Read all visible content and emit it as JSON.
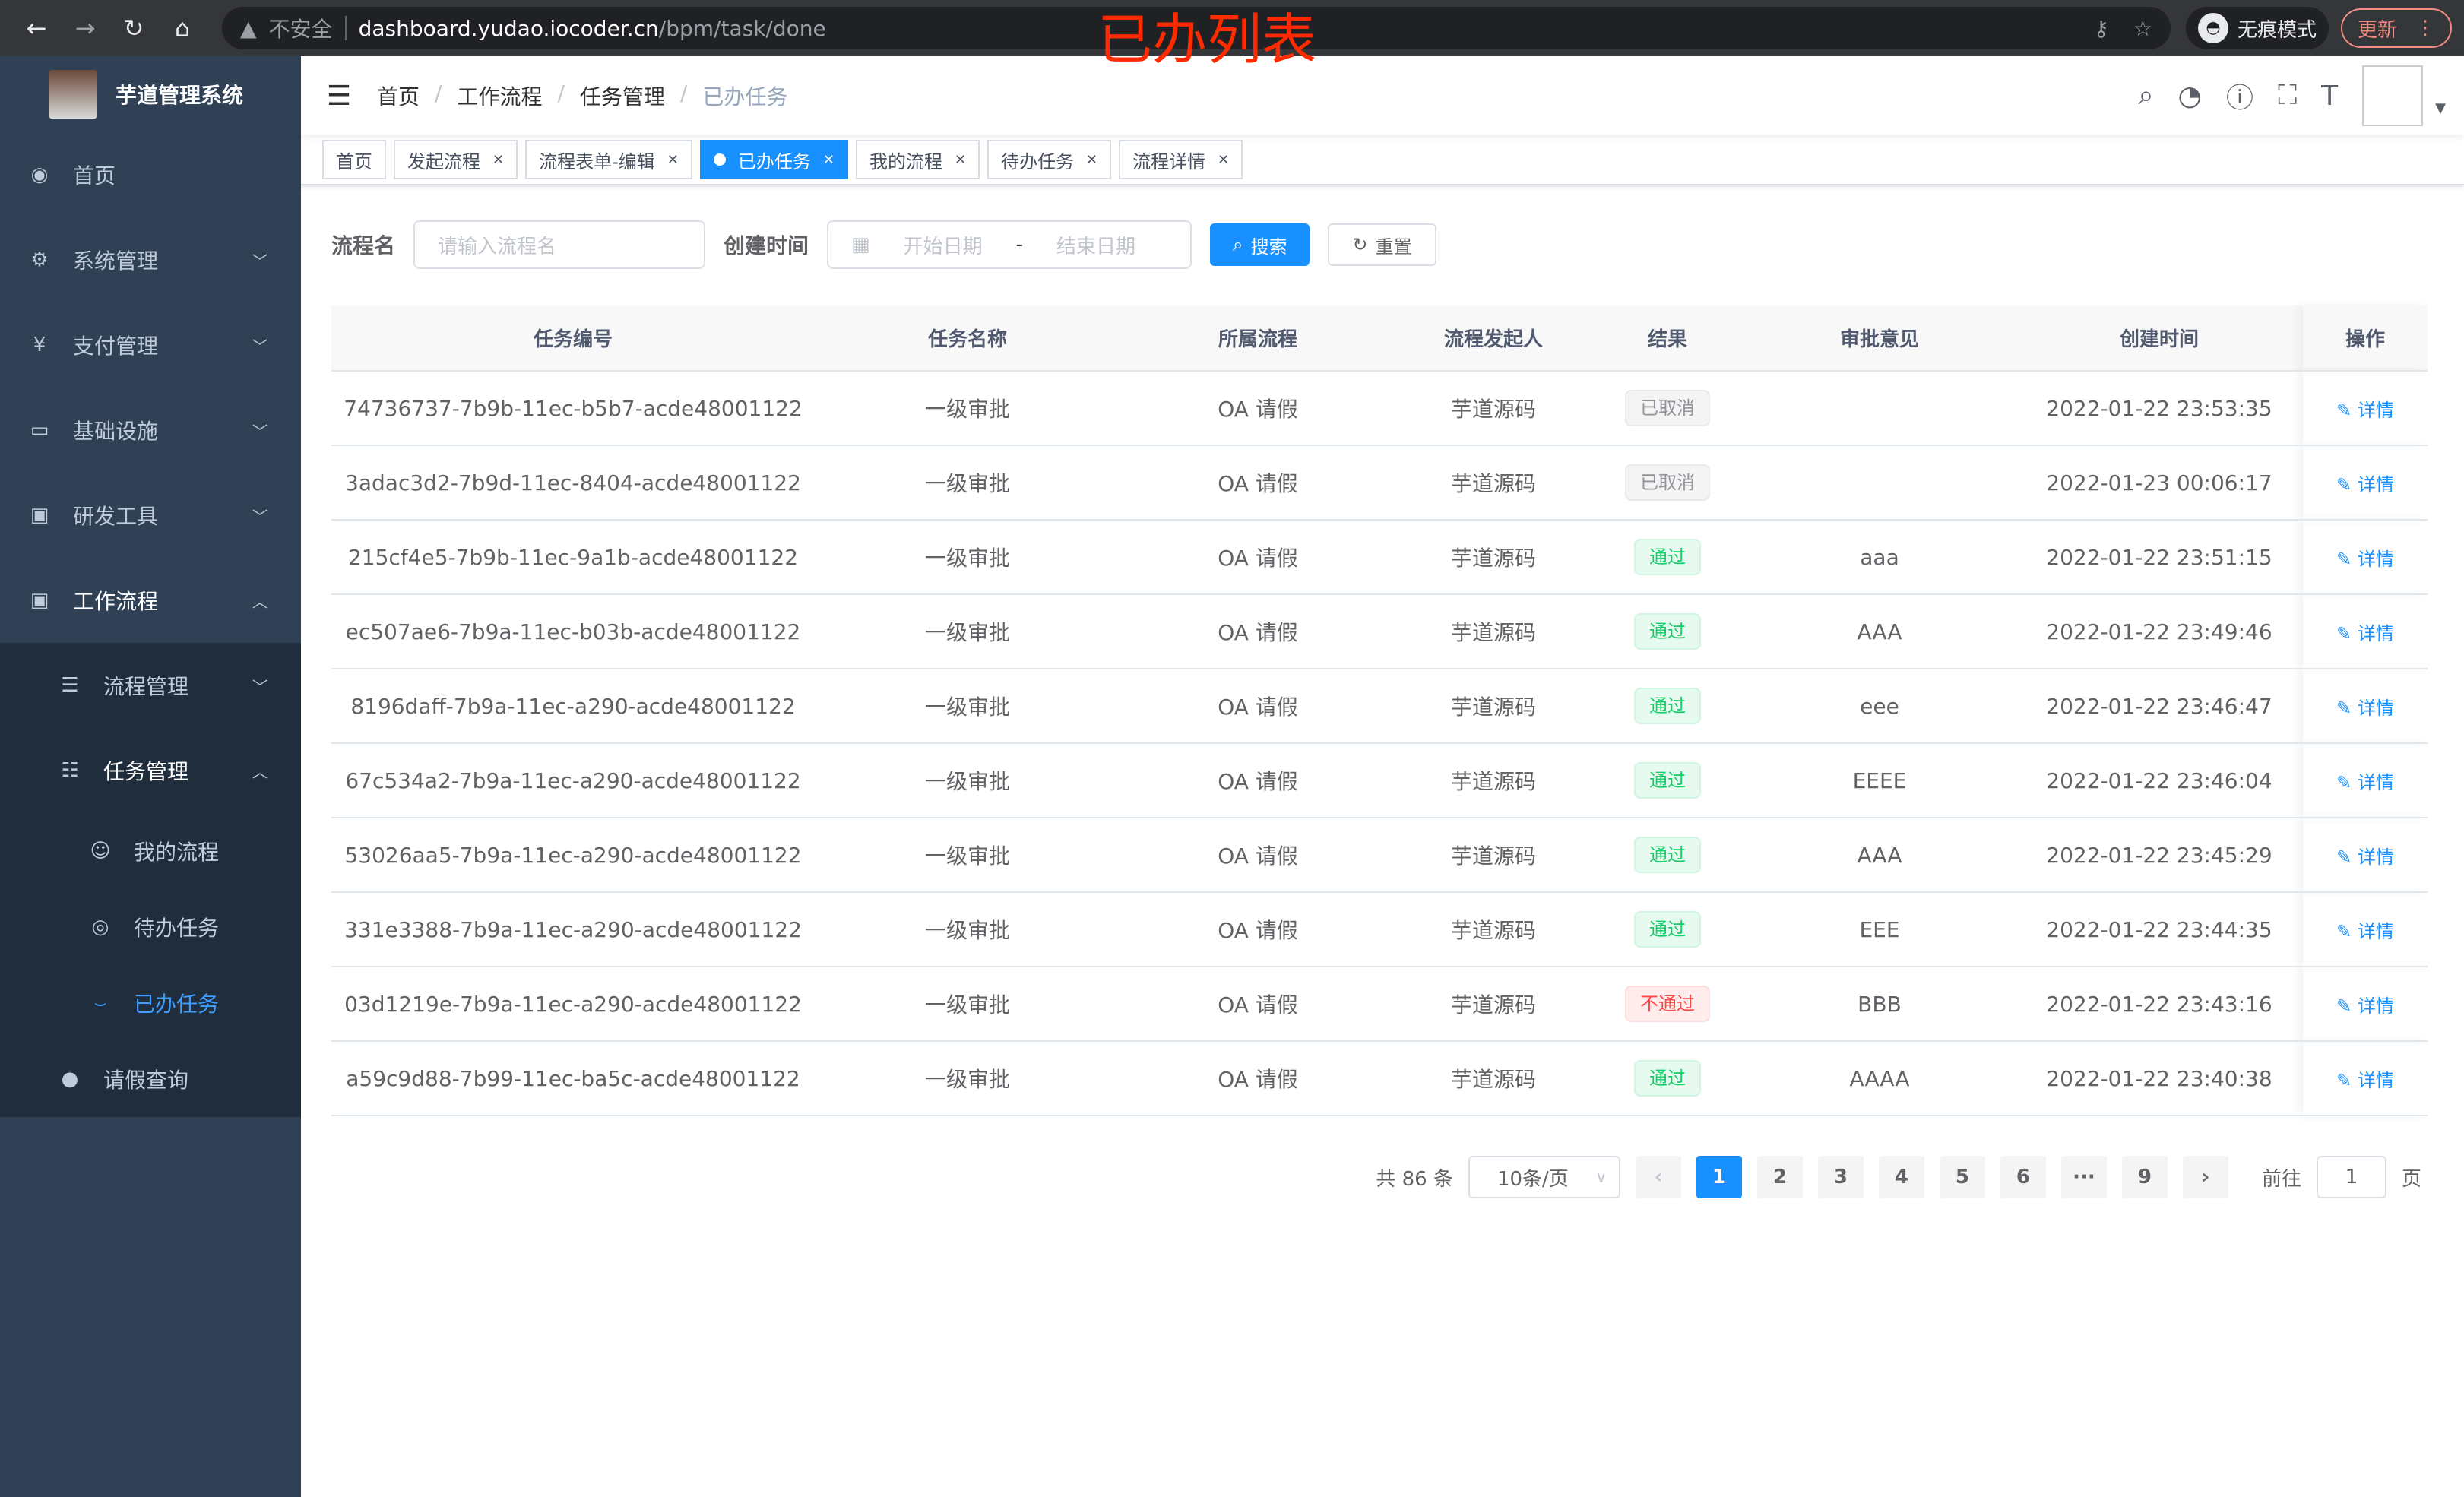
{
  "browser": {
    "security": "不安全",
    "host": "dashboard.yudao.iocoder.cn",
    "path": "/bpm/task/done",
    "incognito": "无痕模式",
    "update": "更新"
  },
  "overlay_title": "已办列表",
  "sidebar": {
    "app_name": "芋道管理系统",
    "items": [
      {
        "label": "首页",
        "icon": "dashboard-icon"
      },
      {
        "label": "系统管理",
        "icon": "gear-icon"
      },
      {
        "label": "支付管理",
        "icon": "yen-icon"
      },
      {
        "label": "基础设施",
        "icon": "monitor-icon"
      },
      {
        "label": "研发工具",
        "icon": "toolbox-icon"
      },
      {
        "label": "工作流程",
        "icon": "toolbox-icon"
      }
    ],
    "workflow_sub": [
      {
        "label": "流程管理"
      },
      {
        "label": "任务管理"
      }
    ],
    "task_sub": [
      {
        "label": "我的流程"
      },
      {
        "label": "待办任务"
      },
      {
        "label": "已办任务"
      }
    ],
    "leave": {
      "label": "请假查询"
    }
  },
  "breadcrumb": [
    "首页",
    "工作流程",
    "任务管理",
    "已办任务"
  ],
  "tags": [
    "首页",
    "发起流程",
    "流程表单-编辑",
    "已办任务",
    "我的流程",
    "待办任务",
    "流程详情"
  ],
  "search": {
    "name_label": "流程名",
    "name_placeholder": "请输入流程名",
    "time_label": "创建时间",
    "start_placeholder": "开始日期",
    "range_sep": "-",
    "end_placeholder": "结束日期",
    "search": "搜索",
    "reset": "重置"
  },
  "table": {
    "headers": [
      "任务编号",
      "任务名称",
      "所属流程",
      "流程发起人",
      "结果",
      "审批意见",
      "创建时间",
      "操作"
    ],
    "rows": [
      [
        "74736737-7b9b-11ec-b5b7-acde48001122",
        "一级审批",
        "OA 请假",
        "芋道源码",
        "已取消",
        "",
        "2022-01-22 23:53:35",
        "详情"
      ],
      [
        "3adac3d2-7b9d-11ec-8404-acde48001122",
        "一级审批",
        "OA 请假",
        "芋道源码",
        "已取消",
        "",
        "2022-01-23 00:06:17",
        "详情"
      ],
      [
        "215cf4e5-7b9b-11ec-9a1b-acde48001122",
        "一级审批",
        "OA 请假",
        "芋道源码",
        "通过",
        "aaa",
        "2022-01-22 23:51:15",
        "详情"
      ],
      [
        "ec507ae6-7b9a-11ec-b03b-acde48001122",
        "一级审批",
        "OA 请假",
        "芋道源码",
        "通过",
        "AAA",
        "2022-01-22 23:49:46",
        "详情"
      ],
      [
        "8196daff-7b9a-11ec-a290-acde48001122",
        "一级审批",
        "OA 请假",
        "芋道源码",
        "通过",
        "eee",
        "2022-01-22 23:46:47",
        "详情"
      ],
      [
        "67c534a2-7b9a-11ec-a290-acde48001122",
        "一级审批",
        "OA 请假",
        "芋道源码",
        "通过",
        "EEEE",
        "2022-01-22 23:46:04",
        "详情"
      ],
      [
        "53026aa5-7b9a-11ec-a290-acde48001122",
        "一级审批",
        "OA 请假",
        "芋道源码",
        "通过",
        "AAA",
        "2022-01-22 23:45:29",
        "详情"
      ],
      [
        "331e3388-7b9a-11ec-a290-acde48001122",
        "一级审批",
        "OA 请假",
        "芋道源码",
        "通过",
        "EEE",
        "2022-01-22 23:44:35",
        "详情"
      ],
      [
        "03d1219e-7b9a-11ec-a290-acde48001122",
        "一级审批",
        "OA 请假",
        "芋道源码",
        "不通过",
        "BBB",
        "2022-01-22 23:43:16",
        "详情"
      ],
      [
        "a59c9d88-7b99-11ec-ba5c-acde48001122",
        "一级审批",
        "OA 请假",
        "芋道源码",
        "通过",
        "AAAA",
        "2022-01-22 23:40:38",
        "详情"
      ]
    ]
  },
  "pagination": {
    "total": "共 86 条",
    "page_size": "10条/页",
    "pages": [
      "1",
      "2",
      "3",
      "4",
      "5",
      "6",
      "···",
      "9"
    ],
    "current": "1",
    "goto_label": "前往",
    "goto_value": "1",
    "page_unit": "页"
  }
}
